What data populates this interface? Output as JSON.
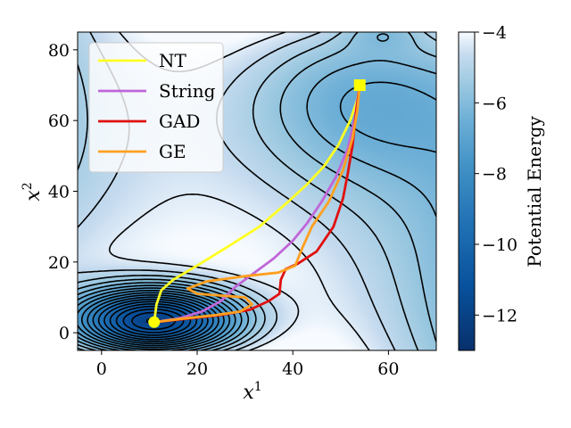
{
  "chart_data": {
    "type": "line",
    "title": "",
    "xlabel": "x",
    "xlabel_sup": "1",
    "ylabel": "x",
    "ylabel_sup": "2",
    "xlim": [
      -5,
      70
    ],
    "ylim": [
      -5,
      85
    ],
    "xticks": [
      0,
      20,
      40,
      60
    ],
    "yticks": [
      0,
      20,
      40,
      60,
      80
    ],
    "grid": false,
    "legend_position": "top-left",
    "background": "contour plot of potential energy (filled, Blues colormap) with black contour lines",
    "colorbar": {
      "label": "Potential Energy",
      "range": [
        -13,
        -4
      ],
      "ticks": [
        -12,
        -10,
        -8,
        -6,
        -4
      ],
      "tick_labels": [
        "−12",
        "−10",
        "−8",
        "−6",
        "−4"
      ],
      "colormap": "Blues_r"
    },
    "start_marker": {
      "x": 11,
      "y": 3,
      "color": "#ffff00",
      "shape": "circle"
    },
    "end_marker": {
      "x": 54,
      "y": 70,
      "color": "#ffff00",
      "shape": "square"
    },
    "series": [
      {
        "name": "NT",
        "color": "#ffff22",
        "x": [
          11,
          11.5,
          12.5,
          15,
          20,
          26,
          33,
          39,
          43,
          46.5,
          49.5,
          52,
          53.5,
          54
        ],
        "y": [
          3,
          8,
          12,
          15,
          19,
          24,
          30,
          37,
          42,
          47,
          53,
          60,
          66,
          70
        ]
      },
      {
        "name": "String",
        "color": "#c066d8",
        "x": [
          11,
          16,
          21,
          25,
          28,
          32,
          36,
          40,
          43,
          46,
          49,
          51.5,
          53,
          54
        ],
        "y": [
          3,
          4,
          6,
          9,
          13,
          17,
          21,
          26,
          31,
          37,
          44,
          52,
          61,
          70
        ]
      },
      {
        "name": "GAD",
        "color": "#e01010",
        "x": [
          11,
          18,
          25,
          31,
          35,
          37.2,
          37.5,
          38.5,
          41,
          45,
          48.5,
          50.5,
          51.5,
          52.5,
          53.2,
          54
        ],
        "y": [
          3,
          4,
          5,
          6.5,
          9,
          11,
          15,
          18,
          19.5,
          23,
          30,
          38,
          45,
          53,
          62,
          70
        ]
      },
      {
        "name": "GE",
        "color": "#ffa020",
        "x": [
          11,
          17,
          24,
          29,
          31.5,
          30,
          25,
          20,
          18,
          22,
          30,
          37,
          40.5,
          42,
          44,
          47.5,
          50.5,
          52.5,
          53.5,
          54
        ],
        "y": [
          3,
          4,
          5,
          6,
          8,
          10,
          10.5,
          11,
          12.5,
          14.5,
          16,
          17,
          19,
          24,
          30,
          37,
          46,
          55,
          63,
          70
        ]
      }
    ]
  }
}
